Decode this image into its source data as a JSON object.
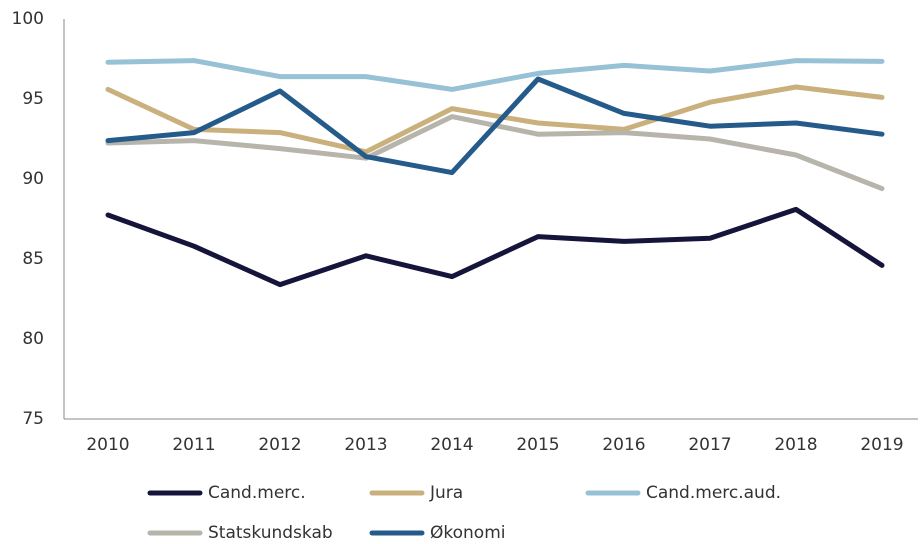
{
  "chart_data": {
    "type": "line",
    "categories": [
      "2010",
      "2011",
      "2012",
      "2013",
      "2014",
      "2015",
      "2016",
      "2017",
      "2018",
      "2019"
    ],
    "series": [
      {
        "name": "Cand.merc.",
        "color": "#15143a",
        "values": [
          87.75,
          85.8,
          83.4,
          85.2,
          83.9,
          86.4,
          86.1,
          86.3,
          88.1,
          84.6
        ]
      },
      {
        "name": "Jura",
        "color": "#c9b07c",
        "values": [
          95.6,
          93.1,
          92.9,
          91.7,
          94.4,
          93.5,
          93.1,
          94.8,
          95.75,
          95.1
        ]
      },
      {
        "name": "Cand.merc.aud.",
        "color": "#97c1d5",
        "values": [
          97.3,
          97.4,
          96.4,
          96.4,
          95.6,
          96.6,
          97.1,
          96.75,
          97.4,
          97.35
        ]
      },
      {
        "name": "Statskundskab",
        "color": "#b6b4ab",
        "values": [
          92.25,
          92.4,
          91.9,
          91.3,
          93.9,
          92.8,
          92.9,
          92.5,
          91.5,
          89.4
        ]
      },
      {
        "name": "Økonomi",
        "color": "#245b8b",
        "values": [
          92.4,
          92.9,
          95.5,
          91.4,
          90.4,
          96.25,
          94.1,
          93.3,
          93.5,
          92.8
        ]
      }
    ],
    "ylim": [
      75,
      100
    ],
    "yticks": [
      75,
      80,
      85,
      90,
      95,
      100
    ],
    "grid": false,
    "legend": "bottom"
  }
}
